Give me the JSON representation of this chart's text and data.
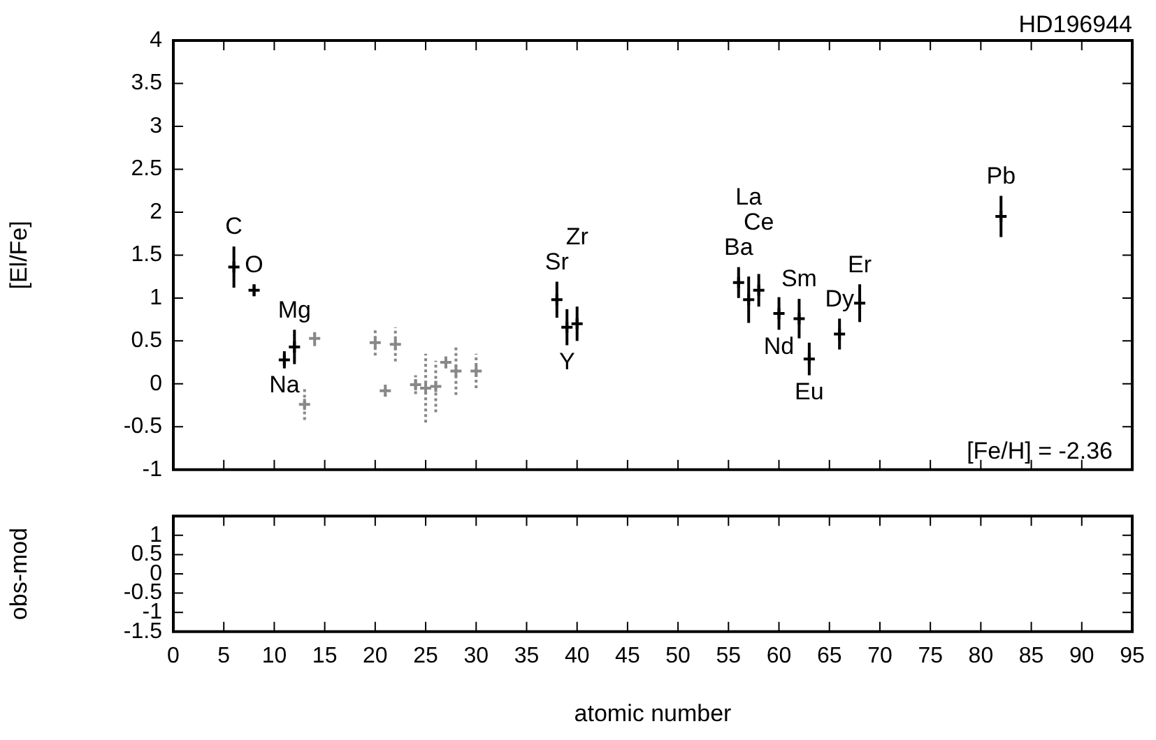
{
  "chart_data": [
    {
      "type": "scatter",
      "title": "HD196944",
      "ylabel": "[El/Fe]",
      "xlim": [
        0,
        95
      ],
      "xticks": [
        0,
        5,
        10,
        15,
        20,
        25,
        30,
        35,
        40,
        45,
        50,
        55,
        60,
        65,
        70,
        75,
        80,
        85,
        90,
        95
      ],
      "ylim": [
        -1,
        4
      ],
      "yticks": [
        -1,
        -0.5,
        0,
        0.5,
        1,
        1.5,
        2,
        2.5,
        3,
        3.5,
        4
      ],
      "tick_labels": "y",
      "marker": "cross",
      "grid": false,
      "legend": false,
      "series": [
        {
          "color": "#000000",
          "line_style": "solid",
          "x": [
            6,
            8,
            11,
            12,
            38,
            39,
            40,
            56,
            57,
            58,
            60,
            62,
            63,
            66,
            68,
            82
          ],
          "values": [
            1.36,
            1.09,
            0.28,
            0.43,
            0.98,
            0.66,
            0.7,
            1.18,
            0.98,
            1.09,
            0.82,
            0.76,
            0.29,
            0.58,
            0.94,
            1.95
          ],
          "errors": [
            0.24,
            0.07,
            0.1,
            0.2,
            0.21,
            0.21,
            0.2,
            0.18,
            0.27,
            0.19,
            0.19,
            0.23,
            0.19,
            0.18,
            0.22,
            0.24
          ]
        },
        {
          "color": "#888888",
          "line_style": "dotted",
          "x": [
            13,
            14,
            20,
            21,
            22,
            24,
            25,
            26,
            27,
            28,
            30
          ],
          "values": [
            -0.24,
            0.53,
            0.48,
            -0.08,
            0.46,
            -0.01,
            -0.05,
            -0.03,
            0.25,
            0.15,
            0.15
          ],
          "errors": [
            0.18,
            0.09,
            0.15,
            0.07,
            0.2,
            0.11,
            0.4,
            0.3,
            0.07,
            0.28,
            0.2
          ]
        }
      ],
      "annotations": [
        {
          "text": "C",
          "x": 6,
          "y": 1.6
        },
        {
          "text": "O",
          "x": 8,
          "y": 1.16
        },
        {
          "text": "Na",
          "x": 11,
          "y": 0.18
        },
        {
          "text": "Mg",
          "x": 12,
          "y": 0.63
        },
        {
          "text": "Sr",
          "x": 38,
          "y": 1.19
        },
        {
          "text": "Y",
          "x": 39,
          "y": 0.45
        },
        {
          "text": "Zr",
          "x": 40,
          "y": 0.9
        },
        {
          "text": "Ba",
          "x": 56,
          "y": 1.36
        },
        {
          "text": "Ce",
          "x": 58,
          "y": 1.28
        },
        {
          "text": "La",
          "x": 57,
          "y": 1.25
        },
        {
          "text": "Nd",
          "x": 60,
          "y": 0.63
        },
        {
          "text": "Sm",
          "x": 62,
          "y": 0.99
        },
        {
          "text": "Eu",
          "x": 63,
          "y": 0.1
        },
        {
          "text": "Dy",
          "x": 66,
          "y": 0.76
        },
        {
          "text": "Er",
          "x": 68,
          "y": 1.16
        },
        {
          "text": "Pb",
          "x": 82,
          "y": 2.19
        },
        "[Fe/H] = -2.36"
      ]
    },
    {
      "type": "scatter",
      "xlabel": "atomic number",
      "ylabel": "obs-mod",
      "xlim": [
        0,
        95
      ],
      "xticks": [
        0,
        5,
        10,
        15,
        20,
        25,
        30,
        35,
        40,
        45,
        50,
        55,
        60,
        65,
        70,
        75,
        80,
        85,
        90,
        95
      ],
      "ylim": [
        -1.5,
        1.5
      ],
      "yticks": [
        -1.5,
        -1,
        -0.5,
        0,
        0.5,
        1
      ],
      "grid": false,
      "legend": false
    }
  ]
}
